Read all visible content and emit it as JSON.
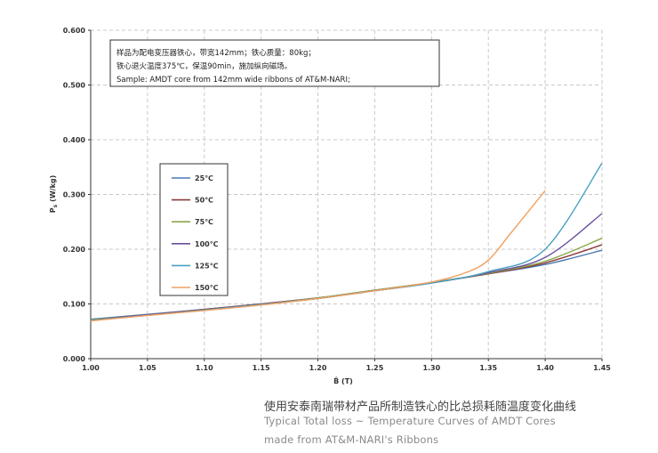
{
  "chart_data": {
    "type": "line",
    "xlabel": "B̂ (T)",
    "ylabel_main": "P",
    "ylabel_sub": "s",
    "ylabel_unit": "(W/kg)",
    "xlim": [
      1.0,
      1.45
    ],
    "ylim": [
      0.0,
      0.6
    ],
    "x_ticks": [
      "1.00",
      "1.05",
      "1.10",
      "1.15",
      "1.20",
      "1.25",
      "1.30",
      "1.35",
      "1.40",
      "1.45"
    ],
    "y_ticks": [
      "0.000",
      "0.100",
      "0.200",
      "0.300",
      "0.400",
      "0.500",
      "0.600"
    ],
    "grid": true,
    "legend_position": "left-middle",
    "annotation_lines": [
      "样品为配电变压器铁心，带宽142mm；铁心质量：80kg；",
      "铁心退火温度375℃，保温90min，施加纵向磁场。",
      "Sample: AMDT core from 142mm wide ribbons of AT&M-NARI;"
    ],
    "series": [
      {
        "name": "25℃",
        "color": "#4a78b0",
        "x": [
          1.0,
          1.05,
          1.1,
          1.15,
          1.2,
          1.25,
          1.3,
          1.35,
          1.4,
          1.45
        ],
        "y": [
          0.072,
          0.081,
          0.09,
          0.1,
          0.111,
          0.125,
          0.139,
          0.155,
          0.172,
          0.198
        ]
      },
      {
        "name": "50℃",
        "color": "#8b3a3a",
        "x": [
          1.0,
          1.05,
          1.1,
          1.15,
          1.2,
          1.25,
          1.3,
          1.35,
          1.4,
          1.45
        ],
        "y": [
          0.071,
          0.08,
          0.09,
          0.1,
          0.111,
          0.125,
          0.139,
          0.155,
          0.175,
          0.208
        ]
      },
      {
        "name": "75℃",
        "color": "#8aa84a",
        "x": [
          1.0,
          1.05,
          1.1,
          1.15,
          1.2,
          1.25,
          1.3,
          1.35,
          1.4,
          1.45
        ],
        "y": [
          0.071,
          0.08,
          0.089,
          0.099,
          0.111,
          0.125,
          0.139,
          0.156,
          0.178,
          0.22
        ]
      },
      {
        "name": "100℃",
        "color": "#6b4f9a",
        "x": [
          1.0,
          1.05,
          1.1,
          1.15,
          1.2,
          1.25,
          1.3,
          1.35,
          1.4,
          1.45
        ],
        "y": [
          0.07,
          0.08,
          0.089,
          0.099,
          0.11,
          0.124,
          0.138,
          0.157,
          0.185,
          0.265
        ]
      },
      {
        "name": "125℃",
        "color": "#4aa0c0",
        "x": [
          1.0,
          1.05,
          1.1,
          1.15,
          1.2,
          1.25,
          1.3,
          1.35,
          1.4,
          1.45
        ],
        "y": [
          0.07,
          0.079,
          0.089,
          0.099,
          0.11,
          0.124,
          0.138,
          0.159,
          0.2,
          0.357
        ]
      },
      {
        "name": "150℃",
        "color": "#f0a060",
        "x": [
          1.0,
          1.05,
          1.1,
          1.15,
          1.2,
          1.25,
          1.3,
          1.33,
          1.35,
          1.37,
          1.4
        ],
        "y": [
          0.069,
          0.079,
          0.088,
          0.098,
          0.11,
          0.124,
          0.14,
          0.157,
          0.18,
          0.23,
          0.307
        ]
      }
    ]
  },
  "caption": {
    "chinese": "使用安泰南瑞带材产品所制造铁心的比总损耗随温度变化曲线",
    "english_line1": "Typical Total loss ~ Temperature Curves of AMDT Cores",
    "english_line2": "made from AT&M-NARI's Ribbons"
  }
}
